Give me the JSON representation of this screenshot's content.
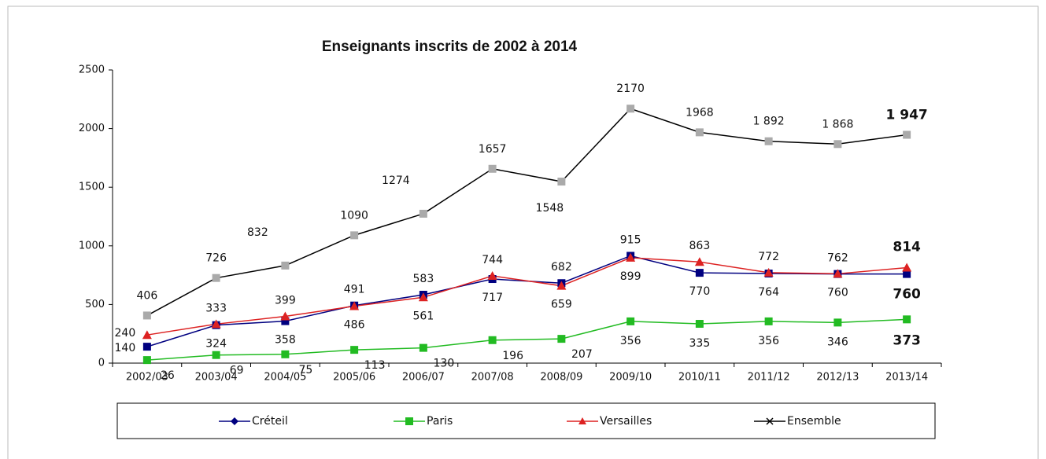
{
  "chart_data": {
    "type": "line",
    "title": "Enseignants inscrits de 2002 à 2014",
    "categories": [
      "2002/03",
      "2003/04",
      "2004/05",
      "2005/06",
      "2006/07",
      "2007/08",
      "2008/09",
      "2009/10",
      "2010/11",
      "2011/12",
      "2012/13",
      "2013/14"
    ],
    "series": [
      {
        "name": "Créteil",
        "color": "#000080",
        "values": [
          140,
          324,
          358,
          491,
          583,
          717,
          682,
          915,
          770,
          764,
          760,
          760
        ]
      },
      {
        "name": "Paris",
        "color": "#22bb22",
        "values": [
          26,
          69,
          75,
          113,
          130,
          196,
          207,
          356,
          335,
          356,
          346,
          373
        ]
      },
      {
        "name": "Versailles",
        "color": "#dd2222",
        "values": [
          240,
          333,
          399,
          486,
          561,
          744,
          659,
          899,
          863,
          772,
          762,
          814
        ]
      },
      {
        "name": "Ensemble",
        "color": "#000000",
        "values": [
          406,
          726,
          832,
          1090,
          1274,
          1657,
          1548,
          2170,
          1968,
          1892,
          1868,
          1947
        ],
        "value_labels": [
          "406",
          "726",
          "832",
          "1090",
          "1274",
          "1657",
          "1548",
          "2170",
          "1968",
          "1 892",
          "1 868",
          "1 947"
        ]
      }
    ],
    "ylim": [
      0,
      2500
    ],
    "yticks": [
      0,
      500,
      1000,
      1500,
      2000,
      2500
    ],
    "grid": false,
    "legend": "bottom"
  }
}
